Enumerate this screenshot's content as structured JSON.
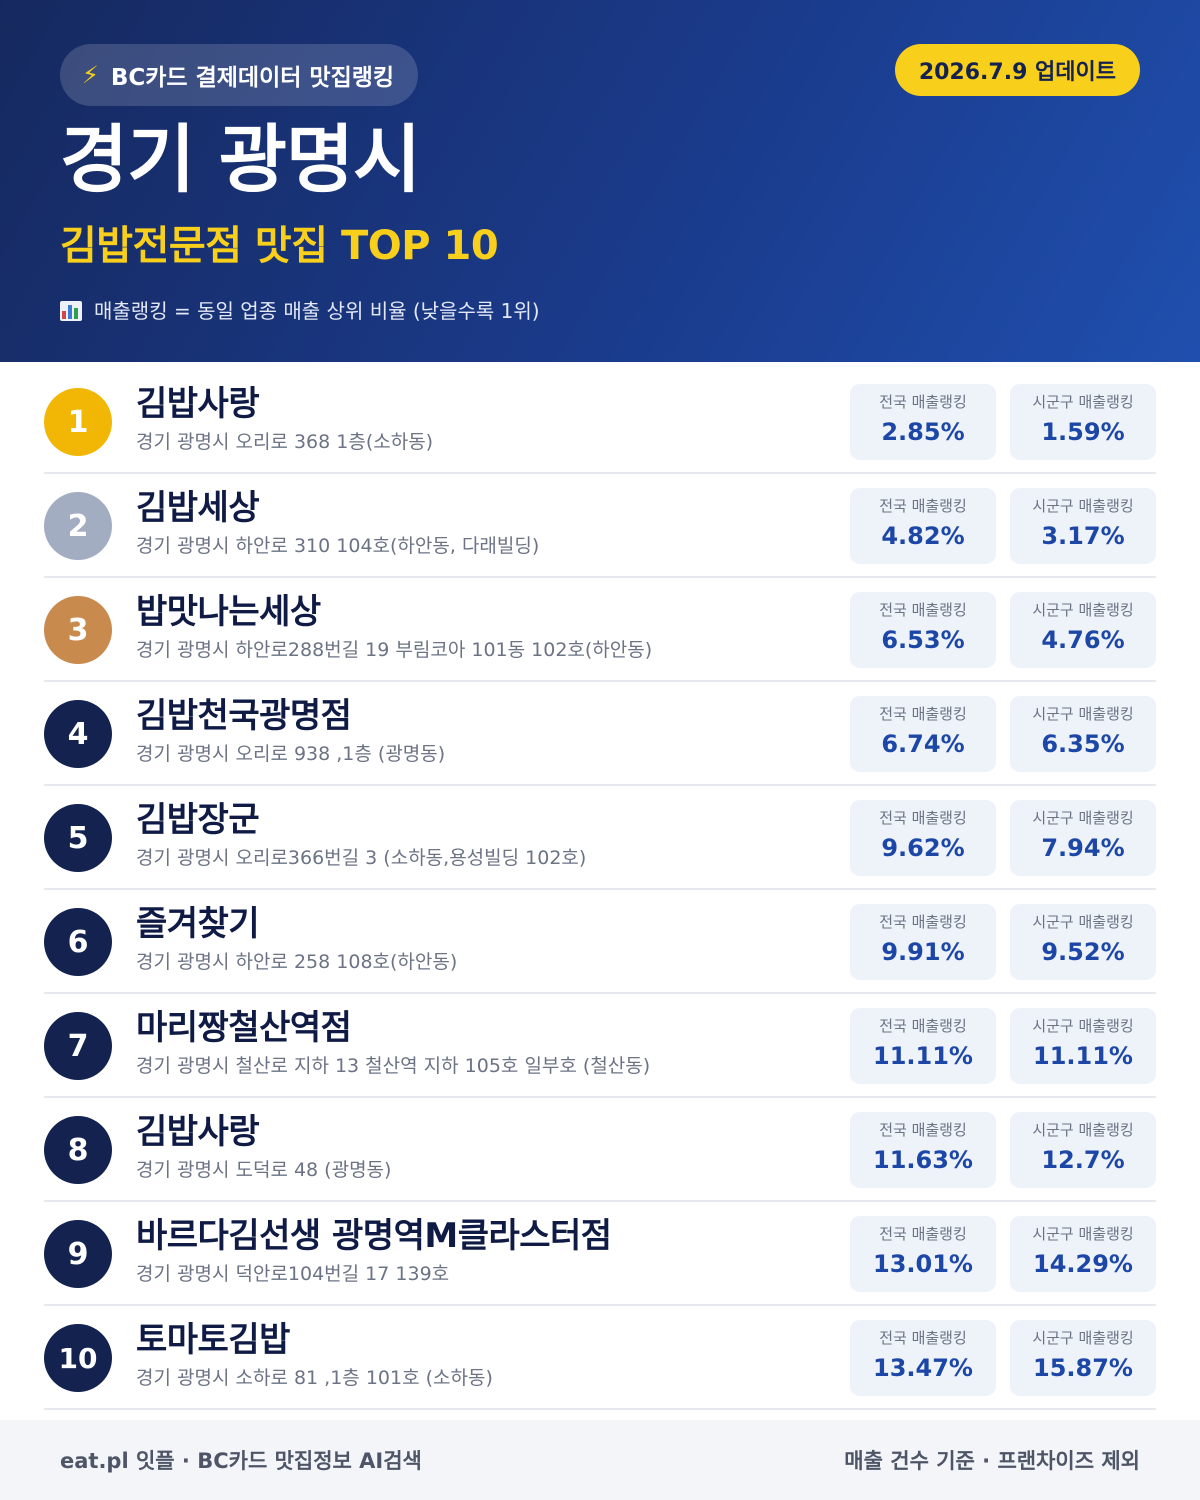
{
  "header": {
    "badge_icon": "lightning-bolt-icon",
    "badge_text": "BC카드 결제데이터 맛집랭킹",
    "update_text": "2026.7.9 업데이트",
    "city": "경기 광명시",
    "subtitle": "김밥전문점 맛집 TOP 10",
    "note_icon": "bar-chart-icon",
    "note_text": "매출랭킹 = 동일 업종 매출 상위 비율 (낮을수록 1위)"
  },
  "labels": {
    "national": "전국 매출랭킹",
    "district": "시군구 매출랭킹"
  },
  "colors": {
    "header_bg": "#16295f",
    "accent_yellow": "#f8cf1a",
    "rank_gold": "#f2b705",
    "rank_silver": "#a3adc2",
    "rank_bronze": "#c98a4e",
    "rank_default": "#14224f",
    "value_blue": "#1d47a6"
  },
  "restaurants": [
    {
      "rank": "1",
      "name": "김밥사랑",
      "address": "경기 광명시 오리로 368 1층(소하동)",
      "national": "2.85%",
      "district": "1.59%"
    },
    {
      "rank": "2",
      "name": "김밥세상",
      "address": "경기 광명시 하안로 310 104호(하안동, 다래빌딩)",
      "national": "4.82%",
      "district": "3.17%"
    },
    {
      "rank": "3",
      "name": "밥맛나는세상",
      "address": "경기 광명시 하안로288번길 19 부림코아 101동 102호(하안동)",
      "national": "6.53%",
      "district": "4.76%"
    },
    {
      "rank": "4",
      "name": "김밥천국광명점",
      "address": "경기 광명시 오리로 938 ,1층 (광명동)",
      "national": "6.74%",
      "district": "6.35%"
    },
    {
      "rank": "5",
      "name": "김밥장군",
      "address": "경기 광명시 오리로366번길 3 (소하동,용성빌딩 102호)",
      "national": "9.62%",
      "district": "7.94%"
    },
    {
      "rank": "6",
      "name": "즐겨찾기",
      "address": "경기 광명시 하안로 258 108호(하안동)",
      "national": "9.91%",
      "district": "9.52%"
    },
    {
      "rank": "7",
      "name": "마리짱철산역점",
      "address": "경기 광명시 철산로 지하 13 철산역 지하 105호 일부호 (철산동)",
      "national": "11.11%",
      "district": "11.11%"
    },
    {
      "rank": "8",
      "name": "김밥사랑",
      "address": "경기 광명시 도덕로 48 (광명동)",
      "national": "11.63%",
      "district": "12.7%"
    },
    {
      "rank": "9",
      "name": "바르다김선생 광명역M클라스터점",
      "address": "경기 광명시 덕안로104번길 17 139호",
      "national": "13.01%",
      "district": "14.29%"
    },
    {
      "rank": "10",
      "name": "토마토김밥",
      "address": "경기 광명시 소하로 81 ,1층 101호 (소하동)",
      "national": "13.47%",
      "district": "15.87%"
    }
  ],
  "footer": {
    "left": "eat.pl 잇플 · BC카드 맛집정보 AI검색",
    "right": "매출 건수 기준 · 프랜차이즈 제외"
  }
}
